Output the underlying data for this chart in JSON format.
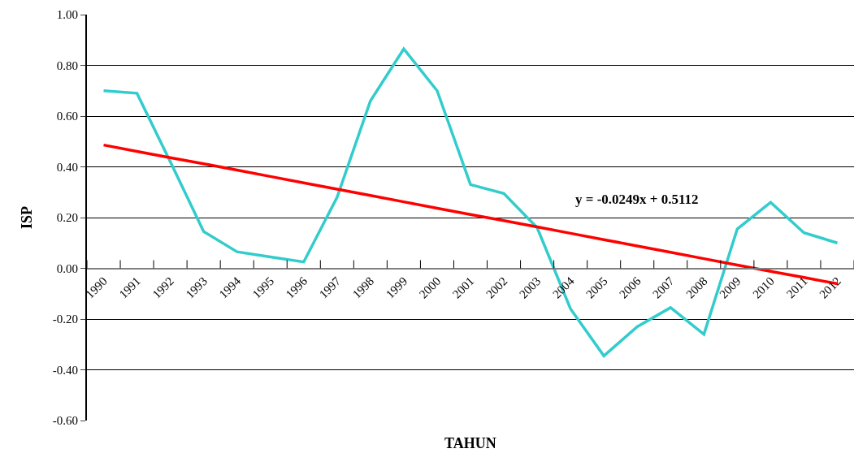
{
  "chart_data": {
    "type": "line",
    "xlabel": "TAHUN",
    "ylabel": "ISP",
    "categories": [
      "1990",
      "1991",
      "1992",
      "1993",
      "1994",
      "1995",
      "1996",
      "1997",
      "1998",
      "1999",
      "2000",
      "2001",
      "2002",
      "2003",
      "2004",
      "2005",
      "2006",
      "2007",
      "2008",
      "2009",
      "2010",
      "2011",
      "2012"
    ],
    "series": [
      {
        "color": "#33cccc",
        "values": [
          0.7,
          0.69,
          0.42,
          0.145,
          0.065,
          0.045,
          0.025,
          0.28,
          0.66,
          0.865,
          0.7,
          0.33,
          0.295,
          0.16,
          -0.16,
          -0.345,
          -0.23,
          -0.155,
          -0.26,
          0.155,
          0.26,
          0.14,
          0.1
        ]
      },
      {
        "type": "line",
        "color": "#ff0000",
        "values": [
          0.486,
          0.461,
          0.436,
          0.412,
          0.387,
          0.362,
          0.337,
          0.312,
          0.287,
          0.262,
          0.237,
          0.212,
          0.188,
          0.163,
          0.138,
          0.113,
          0.088,
          0.063,
          0.038,
          0.013,
          -0.012,
          -0.036,
          -0.061
        ]
      }
    ],
    "ylim": [
      -0.6,
      1.0
    ],
    "yticks": [
      {
        "value": -0.6,
        "label": "-0.60"
      },
      {
        "value": -0.4,
        "label": "-0.40"
      },
      {
        "value": -0.2,
        "label": "-0.20"
      },
      {
        "value": 0,
        "label": "0.00"
      },
      {
        "value": 0.2,
        "label": "0.20"
      },
      {
        "value": 0.4,
        "label": "0.40"
      },
      {
        "value": 0.6,
        "label": "0.60"
      },
      {
        "value": 0.8,
        "label": "0.80"
      },
      {
        "value": 1.0,
        "label": "1.00"
      }
    ],
    "grid": "y",
    "marker": "none",
    "line_style": "solid",
    "annotations": [
      "y = -0.0249x + 0.5112"
    ]
  }
}
